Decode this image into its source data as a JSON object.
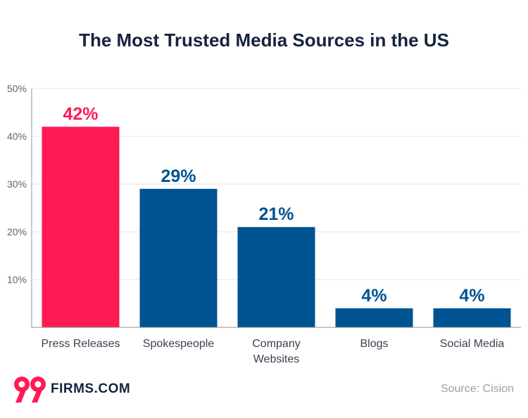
{
  "colors": {
    "highlight": "#ff1a55",
    "primary": "#005491",
    "title": "#16233f",
    "grid": "#e3e5e8",
    "axis": "#8c9097"
  },
  "chart_data": {
    "type": "bar",
    "title": "The Most Trusted Media Sources in the US",
    "categories": [
      [
        "Press Releases"
      ],
      [
        "Spokespeople"
      ],
      [
        "Company",
        "Websites"
      ],
      [
        "Blogs"
      ],
      [
        "Social Media"
      ]
    ],
    "values": [
      42,
      29,
      21,
      4,
      4
    ],
    "value_labels": [
      "42%",
      "29%",
      "21%",
      "4%",
      "4%"
    ],
    "highlight_index": 0,
    "yticks": [
      10,
      20,
      30,
      40,
      50
    ],
    "ytick_labels": [
      "10%",
      "20%",
      "30%",
      "40%",
      "50%"
    ],
    "ylim": [
      0,
      50
    ],
    "xlabel": "",
    "ylabel": "",
    "grid": true
  },
  "footer": {
    "logo_text": "FIRMS.COM",
    "logo_mark": "99",
    "source": "Source: Cision"
  }
}
